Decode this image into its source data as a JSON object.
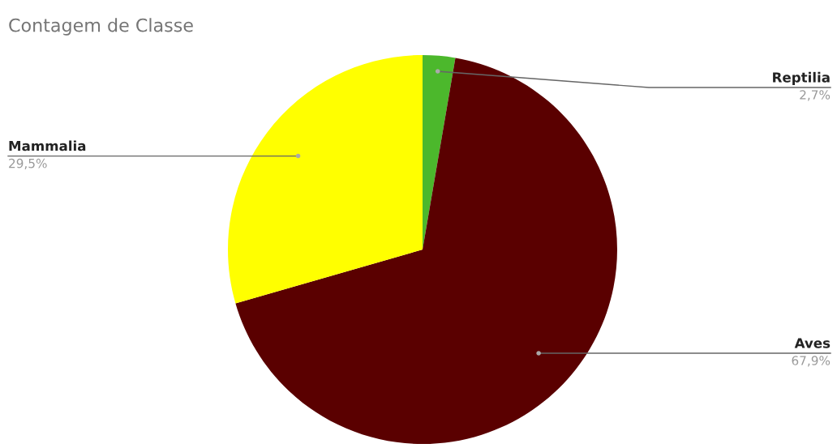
{
  "chart_data": {
    "type": "pie",
    "title": "Contagem de Classe",
    "categories": [
      "Reptilia",
      "Aves",
      "Mammalia"
    ],
    "values": [
      2.7,
      67.9,
      29.5
    ],
    "value_labels": [
      "2,7%",
      "67,9%",
      "29,5%"
    ],
    "colors": [
      "#4cb82c",
      "#5a0000",
      "#ffff00"
    ]
  }
}
